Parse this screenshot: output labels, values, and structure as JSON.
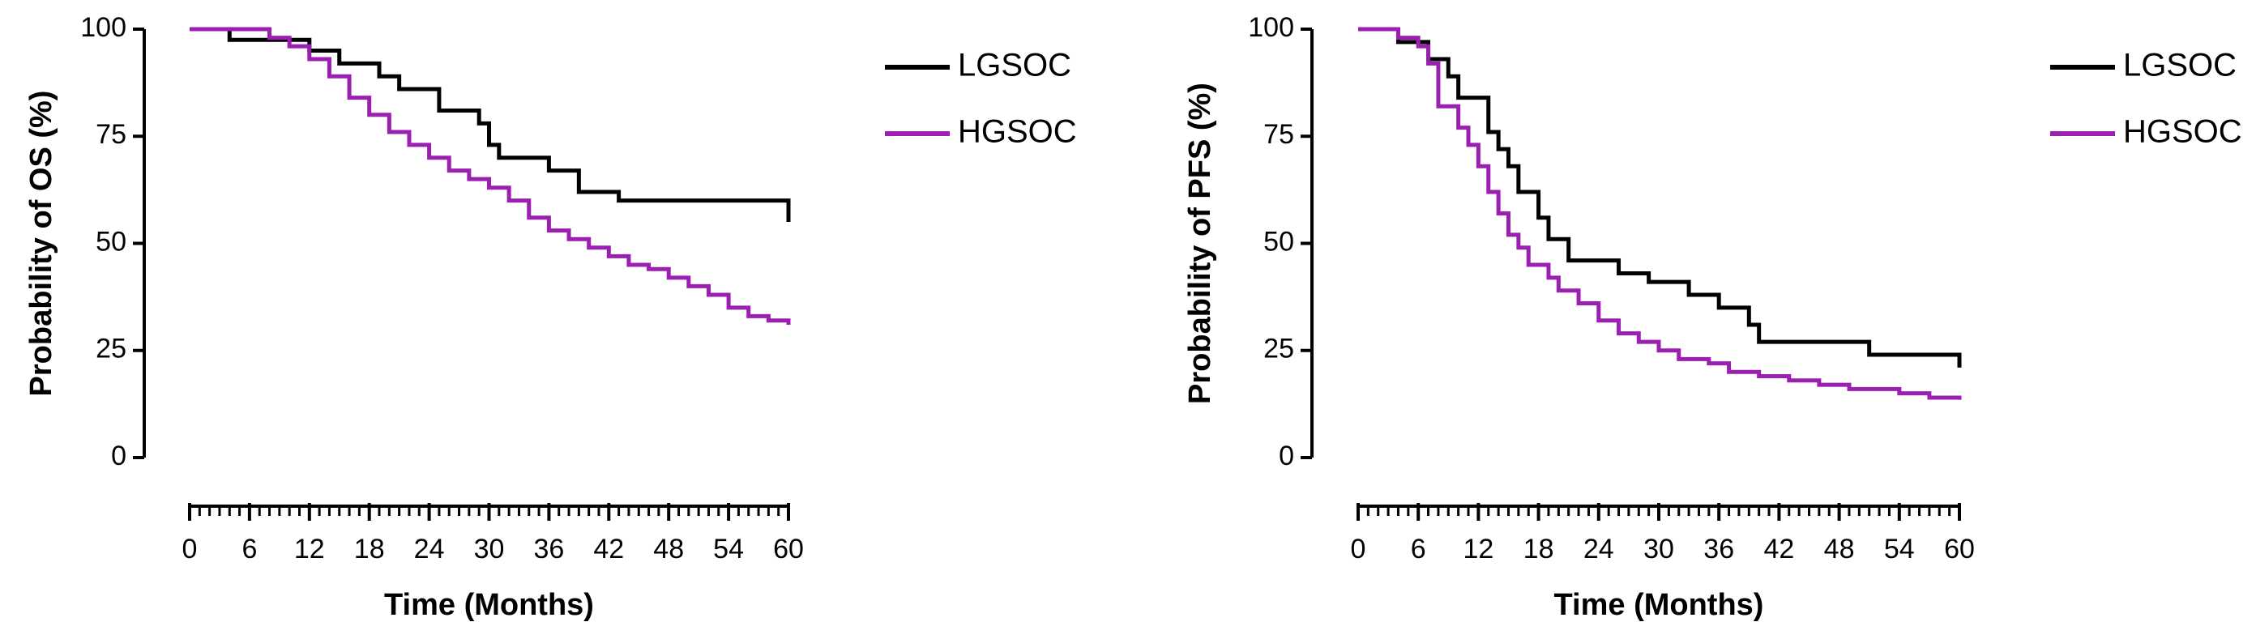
{
  "chart_data": [
    {
      "type": "line",
      "step": true,
      "ylabel": "Probability of OS (%)",
      "xlabel": "Time (Months)",
      "xlim": [
        0,
        60
      ],
      "xticks": [
        0,
        6,
        12,
        18,
        24,
        30,
        36,
        42,
        48,
        54,
        60
      ],
      "ylim": [
        0,
        100
      ],
      "yticks": [
        0,
        25,
        50,
        75,
        100
      ],
      "legend": "right",
      "series": [
        {
          "name": "LGSOC",
          "color": "#000000",
          "x": [
            0,
            4,
            12,
            15,
            19,
            21,
            25,
            29,
            30,
            31,
            36,
            39,
            43,
            59.5,
            60
          ],
          "values": [
            100,
            97.5,
            95,
            92,
            89,
            86,
            81,
            78,
            73,
            70,
            67,
            62,
            60,
            60,
            55
          ]
        },
        {
          "name": "HGSOC",
          "color": "#9b1fb0",
          "x": [
            0,
            5,
            8,
            10,
            12,
            14,
            16,
            18,
            20,
            22,
            24,
            26,
            28,
            30,
            32,
            34,
            36,
            38,
            40,
            42,
            44,
            46,
            48,
            50,
            52,
            54,
            56,
            58,
            60
          ],
          "values": [
            100,
            100,
            98,
            96,
            93,
            89,
            84,
            80,
            76,
            73,
            70,
            67,
            65,
            63,
            60,
            56,
            53,
            51,
            49,
            47,
            45,
            44,
            42,
            40,
            38,
            35,
            33,
            32,
            31
          ]
        }
      ]
    },
    {
      "type": "line",
      "step": true,
      "ylabel": "Probability of PFS (%)",
      "xlabel": "Time (Months)",
      "xlim": [
        0,
        60
      ],
      "xticks": [
        0,
        6,
        12,
        18,
        24,
        30,
        36,
        42,
        48,
        54,
        60
      ],
      "ylim": [
        0,
        100
      ],
      "yticks": [
        0,
        25,
        50,
        75,
        100
      ],
      "legend": "right",
      "series": [
        {
          "name": "LGSOC",
          "color": "#000000",
          "x": [
            0,
            4,
            7,
            9,
            10,
            13,
            14,
            15,
            16,
            18,
            19,
            21,
            26,
            29,
            33,
            36,
            39,
            40,
            51,
            59,
            60
          ],
          "values": [
            100,
            97,
            93,
            89,
            84,
            76,
            72,
            68,
            62,
            56,
            51,
            46,
            43,
            41,
            38,
            35,
            31,
            27,
            24,
            24,
            21
          ]
        },
        {
          "name": "HGSOC",
          "color": "#9b1fb0",
          "x": [
            0,
            4,
            6,
            7,
            8,
            10,
            11,
            12,
            13,
            14,
            15,
            16,
            17,
            19,
            20,
            22,
            24,
            26,
            28,
            30,
            32,
            35,
            37,
            40,
            43,
            46,
            49,
            54,
            57,
            60
          ],
          "values": [
            100,
            98,
            96,
            92,
            82,
            77,
            73,
            68,
            62,
            57,
            52,
            49,
            45,
            42,
            39,
            36,
            32,
            29,
            27,
            25,
            23,
            22,
            20,
            19,
            18,
            17,
            16,
            15,
            14,
            13.5
          ]
        }
      ]
    }
  ]
}
